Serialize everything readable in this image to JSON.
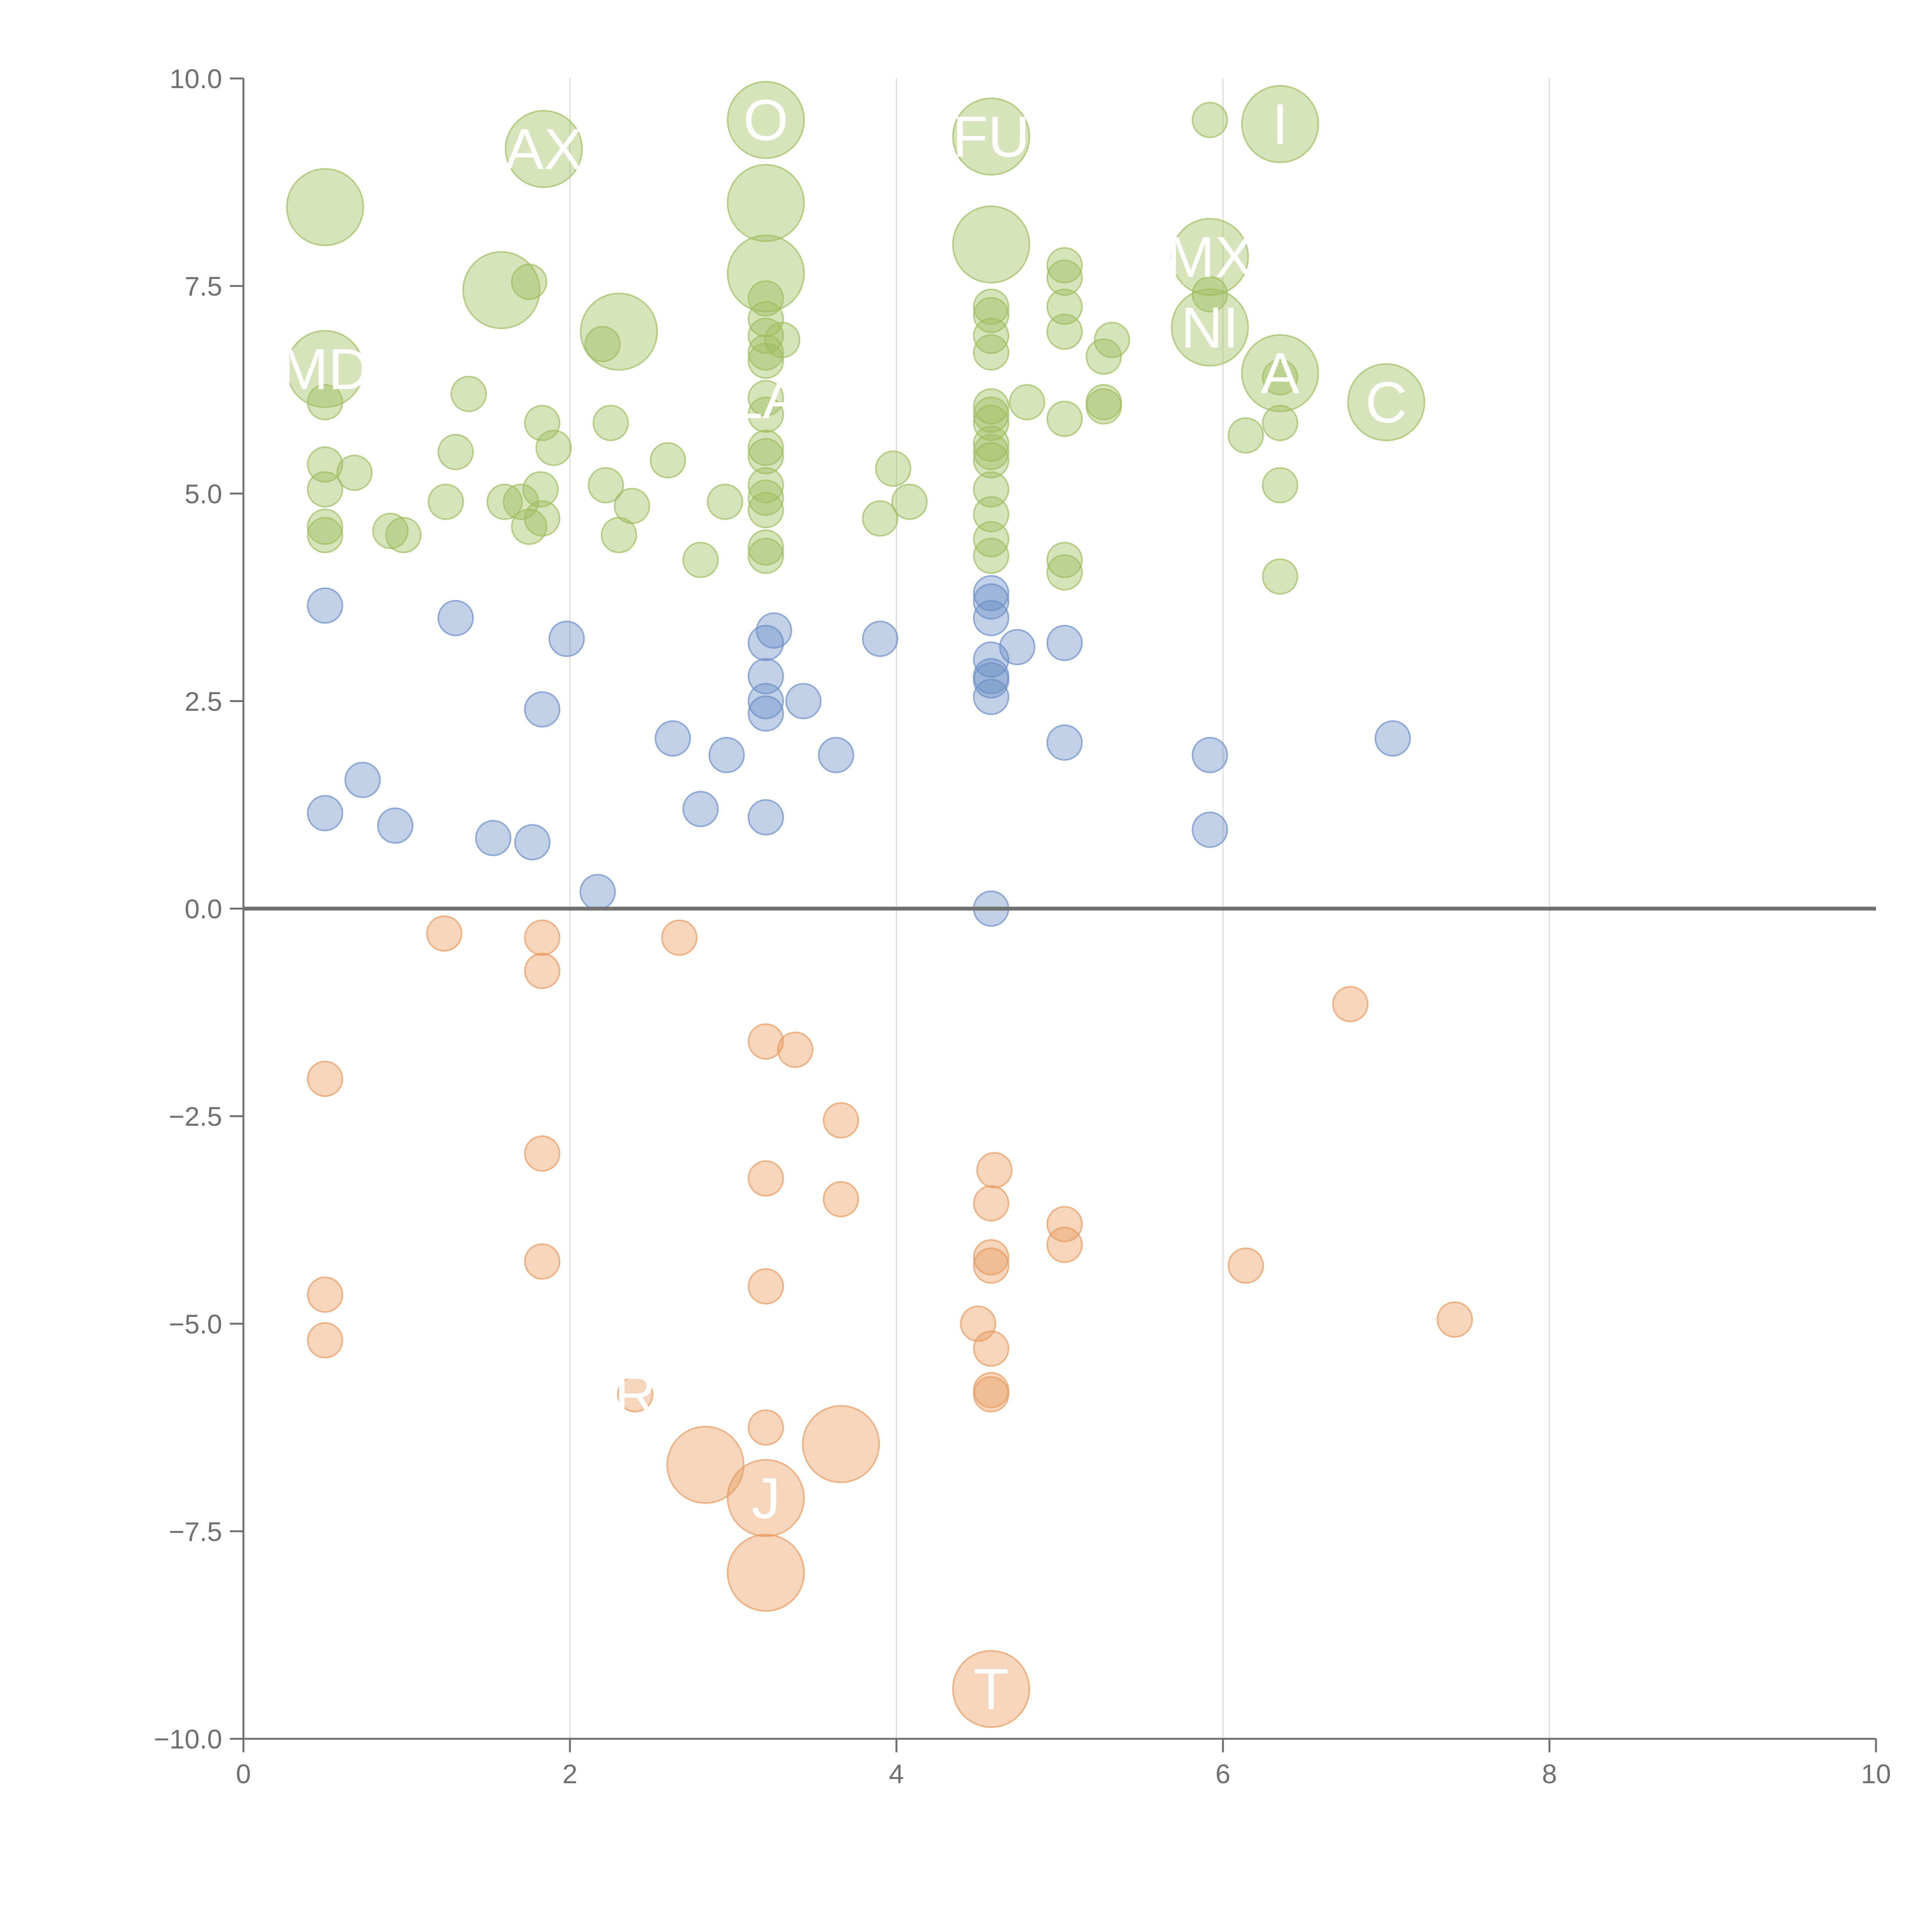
{
  "chart_data": {
    "type": "scatter",
    "title": "",
    "xlabel": "",
    "ylabel": "",
    "xlim": [
      0,
      10
    ],
    "ylim": [
      -10,
      10
    ],
    "x_ticks": [
      "0",
      "2",
      "4",
      "6",
      "8",
      "10"
    ],
    "y_ticks": [
      "10.0",
      "7.5",
      "5.0",
      "2.5",
      "0.0",
      "−2.5",
      "−5.0",
      "−7.5",
      "−10.0"
    ],
    "grid": "vertical",
    "zero_line": true,
    "colors": {
      "high": "#9ebd5e",
      "mid": "#6b8ec6",
      "low": "#e89a5e",
      "axis": "#707070",
      "grid": "#d9d9d9",
      "label": "#ffffff"
    },
    "series": [
      {
        "color_key": "high",
        "points": [
          {
            "x": 0.5,
            "y": 8.45,
            "size": 2.2
          },
          {
            "x": 0.5,
            "y": 6.5,
            "size": 2.2,
            "label": "MD"
          },
          {
            "x": 0.5,
            "y": 6.1,
            "size": 1
          },
          {
            "x": 0.5,
            "y": 5.35,
            "size": 1
          },
          {
            "x": 0.5,
            "y": 5.05,
            "size": 1
          },
          {
            "x": 0.5,
            "y": 4.6,
            "size": 1
          },
          {
            "x": 0.5,
            "y": 4.5,
            "size": 1
          },
          {
            "x": 0.68,
            "y": 5.25,
            "size": 1
          },
          {
            "x": 0.9,
            "y": 4.55,
            "size": 1
          },
          {
            "x": 0.98,
            "y": 4.5,
            "size": 1
          },
          {
            "x": 1.24,
            "y": 4.9,
            "size": 1
          },
          {
            "x": 1.3,
            "y": 5.5,
            "size": 1
          },
          {
            "x": 1.38,
            "y": 6.2,
            "size": 1
          },
          {
            "x": 1.58,
            "y": 7.45,
            "size": 2.2
          },
          {
            "x": 1.6,
            "y": 4.9,
            "size": 1
          },
          {
            "x": 1.7,
            "y": 4.9,
            "size": 1
          },
          {
            "x": 1.75,
            "y": 4.6,
            "size": 1
          },
          {
            "x": 1.75,
            "y": 7.55,
            "size": 1
          },
          {
            "x": 1.82,
            "y": 5.05,
            "size": 1
          },
          {
            "x": 1.83,
            "y": 4.7,
            "size": 1
          },
          {
            "x": 1.83,
            "y": 5.85,
            "size": 1
          },
          {
            "x": 1.84,
            "y": 9.15,
            "size": 2.2,
            "label": "AX"
          },
          {
            "x": 1.9,
            "y": 5.55,
            "size": 1
          },
          {
            "x": 2.2,
            "y": 6.8,
            "size": 1
          },
          {
            "x": 2.22,
            "y": 5.1,
            "size": 1
          },
          {
            "x": 2.25,
            "y": 5.85,
            "size": 1
          },
          {
            "x": 2.3,
            "y": 4.5,
            "size": 1
          },
          {
            "x": 2.3,
            "y": 6.95,
            "size": 2.2
          },
          {
            "x": 2.38,
            "y": 4.85,
            "size": 1
          },
          {
            "x": 2.6,
            "y": 5.4,
            "size": 1
          },
          {
            "x": 2.8,
            "y": 4.2,
            "size": 1
          },
          {
            "x": 2.95,
            "y": 4.9,
            "size": 1
          },
          {
            "x": 3.2,
            "y": 9.5,
            "size": 2.2,
            "label": "O"
          },
          {
            "x": 3.2,
            "y": 8.5,
            "size": 2.2
          },
          {
            "x": 3.2,
            "y": 7.65,
            "size": 2.2
          },
          {
            "x": 3.2,
            "y": 7.35,
            "size": 1
          },
          {
            "x": 3.2,
            "y": 7.1,
            "size": 1
          },
          {
            "x": 3.2,
            "y": 6.9,
            "size": 1
          },
          {
            "x": 3.2,
            "y": 6.7,
            "size": 1
          },
          {
            "x": 3.2,
            "y": 6.6,
            "size": 1
          },
          {
            "x": 3.3,
            "y": 6.85,
            "size": 1
          },
          {
            "x": 3.2,
            "y": 6.15,
            "size": 1,
            "label": "LA"
          },
          {
            "x": 3.2,
            "y": 5.95,
            "size": 1
          },
          {
            "x": 3.2,
            "y": 5.55,
            "size": 1
          },
          {
            "x": 3.2,
            "y": 5.45,
            "size": 1
          },
          {
            "x": 3.2,
            "y": 5.1,
            "size": 1
          },
          {
            "x": 3.2,
            "y": 4.95,
            "size": 1
          },
          {
            "x": 3.2,
            "y": 4.8,
            "size": 1
          },
          {
            "x": 3.2,
            "y": 4.35,
            "size": 1
          },
          {
            "x": 3.2,
            "y": 4.25,
            "size": 1
          },
          {
            "x": 3.9,
            "y": 4.7,
            "size": 1
          },
          {
            "x": 3.98,
            "y": 5.3,
            "size": 1
          },
          {
            "x": 4.08,
            "y": 4.9,
            "size": 1
          },
          {
            "x": 4.58,
            "y": 9.3,
            "size": 2.2,
            "label": "FU"
          },
          {
            "x": 4.58,
            "y": 8.0,
            "size": 2.2
          },
          {
            "x": 4.58,
            "y": 7.25,
            "size": 1
          },
          {
            "x": 4.58,
            "y": 7.15,
            "size": 1
          },
          {
            "x": 4.58,
            "y": 6.9,
            "size": 1
          },
          {
            "x": 4.58,
            "y": 6.7,
            "size": 1
          },
          {
            "x": 4.58,
            "y": 6.05,
            "size": 1
          },
          {
            "x": 4.58,
            "y": 5.95,
            "size": 1
          },
          {
            "x": 4.58,
            "y": 5.85,
            "size": 1
          },
          {
            "x": 4.58,
            "y": 5.6,
            "size": 1
          },
          {
            "x": 4.58,
            "y": 5.5,
            "size": 1
          },
          {
            "x": 4.58,
            "y": 5.4,
            "size": 1
          },
          {
            "x": 4.58,
            "y": 5.05,
            "size": 1
          },
          {
            "x": 4.58,
            "y": 4.75,
            "size": 1
          },
          {
            "x": 4.58,
            "y": 4.45,
            "size": 1
          },
          {
            "x": 4.58,
            "y": 4.25,
            "size": 1
          },
          {
            "x": 4.8,
            "y": 6.1,
            "size": 1
          },
          {
            "x": 5.03,
            "y": 7.75,
            "size": 1
          },
          {
            "x": 5.03,
            "y": 7.6,
            "size": 1
          },
          {
            "x": 5.03,
            "y": 7.25,
            "size": 1
          },
          {
            "x": 5.03,
            "y": 6.95,
            "size": 1
          },
          {
            "x": 5.03,
            "y": 5.9,
            "size": 1
          },
          {
            "x": 5.03,
            "y": 4.2,
            "size": 1
          },
          {
            "x": 5.03,
            "y": 4.05,
            "size": 1
          },
          {
            "x": 5.27,
            "y": 6.65,
            "size": 1
          },
          {
            "x": 5.27,
            "y": 6.1,
            "size": 1
          },
          {
            "x": 5.27,
            "y": 6.05,
            "size": 1
          },
          {
            "x": 5.32,
            "y": 6.85,
            "size": 1
          },
          {
            "x": 5.92,
            "y": 9.5,
            "size": 1
          },
          {
            "x": 5.92,
            "y": 7.85,
            "size": 2.2,
            "label": "MX"
          },
          {
            "x": 5.92,
            "y": 7.0,
            "size": 2.2,
            "label": "NI"
          },
          {
            "x": 5.92,
            "y": 7.4,
            "size": 1
          },
          {
            "x": 6.14,
            "y": 5.7,
            "size": 1
          },
          {
            "x": 6.35,
            "y": 9.45,
            "size": 2.2,
            "label": "I"
          },
          {
            "x": 6.35,
            "y": 6.45,
            "size": 2.2,
            "label": "A"
          },
          {
            "x": 6.35,
            "y": 6.4,
            "size": 1
          },
          {
            "x": 6.35,
            "y": 5.85,
            "size": 1
          },
          {
            "x": 6.35,
            "y": 5.1,
            "size": 1
          },
          {
            "x": 6.35,
            "y": 4.0,
            "size": 1
          },
          {
            "x": 7.0,
            "y": 6.1,
            "size": 2.2,
            "label": "C"
          }
        ]
      },
      {
        "color_key": "mid",
        "points": [
          {
            "x": 0.5,
            "y": 3.65,
            "size": 1
          },
          {
            "x": 0.5,
            "y": 1.15,
            "size": 1
          },
          {
            "x": 0.73,
            "y": 1.55,
            "size": 1
          },
          {
            "x": 0.93,
            "y": 1.0,
            "size": 1
          },
          {
            "x": 1.3,
            "y": 3.5,
            "size": 1
          },
          {
            "x": 1.53,
            "y": 0.85,
            "size": 1
          },
          {
            "x": 1.77,
            "y": 0.8,
            "size": 1
          },
          {
            "x": 1.83,
            "y": 2.4,
            "size": 1
          },
          {
            "x": 1.98,
            "y": 3.25,
            "size": 1
          },
          {
            "x": 2.17,
            "y": 0.2,
            "size": 1
          },
          {
            "x": 2.63,
            "y": 2.05,
            "size": 1
          },
          {
            "x": 2.8,
            "y": 1.2,
            "size": 1
          },
          {
            "x": 2.96,
            "y": 1.85,
            "size": 1
          },
          {
            "x": 3.2,
            "y": 3.2,
            "size": 1
          },
          {
            "x": 3.2,
            "y": 2.8,
            "size": 1
          },
          {
            "x": 3.2,
            "y": 2.5,
            "size": 1
          },
          {
            "x": 3.2,
            "y": 2.35,
            "size": 1
          },
          {
            "x": 3.2,
            "y": 1.1,
            "size": 1
          },
          {
            "x": 3.25,
            "y": 3.35,
            "size": 1
          },
          {
            "x": 3.43,
            "y": 2.5,
            "size": 1
          },
          {
            "x": 3.63,
            "y": 1.85,
            "size": 1
          },
          {
            "x": 3.9,
            "y": 3.25,
            "size": 1
          },
          {
            "x": 4.58,
            "y": 3.8,
            "size": 1
          },
          {
            "x": 4.58,
            "y": 3.7,
            "size": 1
          },
          {
            "x": 4.58,
            "y": 3.5,
            "size": 1
          },
          {
            "x": 4.58,
            "y": 3.0,
            "size": 1
          },
          {
            "x": 4.58,
            "y": 2.8,
            "size": 1
          },
          {
            "x": 4.58,
            "y": 2.75,
            "size": 1
          },
          {
            "x": 4.58,
            "y": 2.55,
            "size": 1
          },
          {
            "x": 4.58,
            "y": 0.0,
            "size": 1
          },
          {
            "x": 4.74,
            "y": 3.15,
            "size": 1
          },
          {
            "x": 5.03,
            "y": 3.2,
            "size": 1
          },
          {
            "x": 5.03,
            "y": 2.0,
            "size": 1
          },
          {
            "x": 5.92,
            "y": 1.85,
            "size": 1
          },
          {
            "x": 5.92,
            "y": 0.95,
            "size": 1
          },
          {
            "x": 7.04,
            "y": 2.05,
            "size": 1
          }
        ]
      },
      {
        "color_key": "low",
        "points": [
          {
            "x": 0.5,
            "y": -2.05,
            "size": 1
          },
          {
            "x": 0.5,
            "y": -4.65,
            "size": 1
          },
          {
            "x": 0.5,
            "y": -5.2,
            "size": 1
          },
          {
            "x": 1.23,
            "y": -0.3,
            "size": 1
          },
          {
            "x": 1.83,
            "y": -0.35,
            "size": 1
          },
          {
            "x": 1.83,
            "y": -0.75,
            "size": 1
          },
          {
            "x": 1.83,
            "y": -2.95,
            "size": 1
          },
          {
            "x": 1.83,
            "y": -4.25,
            "size": 1
          },
          {
            "x": 2.67,
            "y": -0.35,
            "size": 1
          },
          {
            "x": 2.4,
            "y": -5.85,
            "size": 1,
            "label": "R"
          },
          {
            "x": 2.83,
            "y": -6.7,
            "size": 2.2
          },
          {
            "x": 3.2,
            "y": -1.6,
            "size": 1
          },
          {
            "x": 3.2,
            "y": -3.25,
            "size": 1
          },
          {
            "x": 3.2,
            "y": -4.55,
            "size": 1
          },
          {
            "x": 3.2,
            "y": -6.25,
            "size": 1
          },
          {
            "x": 3.2,
            "y": -7.1,
            "size": 2.2,
            "label": "J"
          },
          {
            "x": 3.2,
            "y": -8.0,
            "size": 2.2
          },
          {
            "x": 3.38,
            "y": -1.7,
            "size": 1
          },
          {
            "x": 3.66,
            "y": -2.55,
            "size": 1
          },
          {
            "x": 3.66,
            "y": -3.5,
            "size": 1
          },
          {
            "x": 3.66,
            "y": -6.45,
            "size": 2.2
          },
          {
            "x": 4.5,
            "y": -5.0,
            "size": 1
          },
          {
            "x": 4.6,
            "y": -3.15,
            "size": 1
          },
          {
            "x": 4.58,
            "y": -3.55,
            "size": 1
          },
          {
            "x": 4.58,
            "y": -4.2,
            "size": 1
          },
          {
            "x": 4.58,
            "y": -4.3,
            "size": 1
          },
          {
            "x": 4.58,
            "y": -5.3,
            "size": 1
          },
          {
            "x": 4.58,
            "y": -5.8,
            "size": 1
          },
          {
            "x": 4.58,
            "y": -5.85,
            "size": 1
          },
          {
            "x": 4.58,
            "y": -9.4,
            "size": 2.2,
            "label": "T"
          },
          {
            "x": 5.03,
            "y": -3.8,
            "size": 1
          },
          {
            "x": 5.03,
            "y": -4.05,
            "size": 1
          },
          {
            "x": 6.14,
            "y": -4.3,
            "size": 1
          },
          {
            "x": 6.78,
            "y": -1.15,
            "size": 1
          },
          {
            "x": 7.42,
            "y": -4.95,
            "size": 1
          }
        ]
      }
    ]
  }
}
